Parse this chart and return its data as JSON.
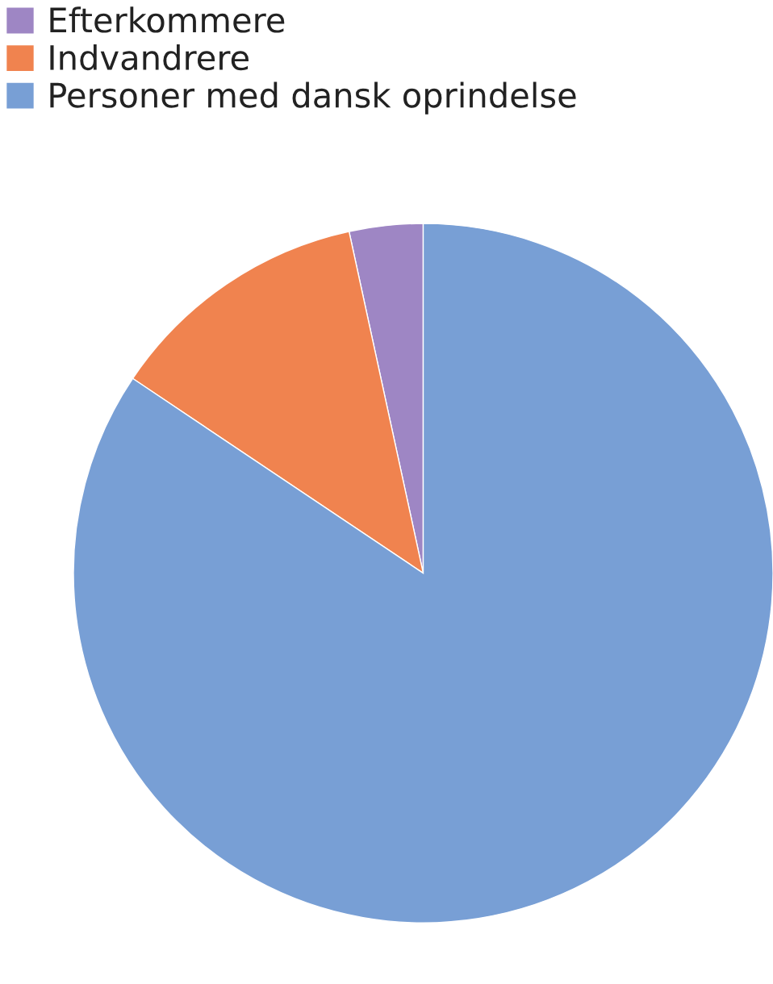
{
  "chart_data": {
    "type": "pie",
    "categories": [
      "Efterkommere",
      "Indvandrere",
      "Personer med dansk oprindelse"
    ],
    "values": [
      3.4,
      12.2,
      84.4
    ],
    "colors": [
      "#9e86c4",
      "#f0834f",
      "#789fd5"
    ],
    "legend": "top left"
  }
}
